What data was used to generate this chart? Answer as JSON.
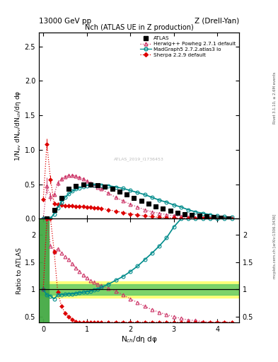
{
  "title_top": "13000 GeV pp",
  "title_top_right": "Z (Drell-Yan)",
  "title_main": "Nch (ATLAS UE in Z production)",
  "ylabel_main": "1/N$_{ev}$ dN$_{ev}$/dN$_{ch}$/dη dφ",
  "ylabel_ratio": "Ratio to ATLAS",
  "xlabel": "N$_{ch}$/dη dφ",
  "right_label_top": "Rivet 3.1.10, ≥ 2.6M events",
  "right_label_bottom": "mcplots.cern.ch [arXiv:1306.3436]",
  "watermark": "ATLAS_2019_I1736453",
  "atlas_x": [
    0.083,
    0.25,
    0.417,
    0.583,
    0.75,
    0.917,
    1.083,
    1.25,
    1.417,
    1.583,
    1.75,
    1.917,
    2.083,
    2.25,
    2.417,
    2.583,
    2.75,
    2.917,
    3.083,
    3.25,
    3.417,
    3.583,
    3.75,
    3.917,
    4.083,
    4.25
  ],
  "atlas_y": [
    0.005,
    0.13,
    0.3,
    0.43,
    0.48,
    0.5,
    0.5,
    0.49,
    0.47,
    0.43,
    0.39,
    0.35,
    0.3,
    0.26,
    0.22,
    0.18,
    0.15,
    0.12,
    0.09,
    0.07,
    0.055,
    0.04,
    0.03,
    0.02,
    0.012,
    0.006
  ],
  "herwig_x": [
    0.0,
    0.083,
    0.167,
    0.25,
    0.333,
    0.417,
    0.5,
    0.583,
    0.667,
    0.75,
    0.833,
    0.917,
    1.0,
    1.083,
    1.167,
    1.25,
    1.333,
    1.5,
    1.667,
    1.833,
    2.0,
    2.167,
    2.333,
    2.5,
    2.667,
    2.833,
    3.0,
    3.167,
    3.333,
    3.5,
    3.667,
    3.833,
    4.0,
    4.167,
    4.333
  ],
  "herwig_y": [
    0.003,
    0.48,
    0.32,
    0.35,
    0.52,
    0.58,
    0.61,
    0.63,
    0.63,
    0.62,
    0.6,
    0.58,
    0.55,
    0.52,
    0.49,
    0.46,
    0.43,
    0.37,
    0.31,
    0.26,
    0.21,
    0.17,
    0.13,
    0.1,
    0.08,
    0.06,
    0.045,
    0.033,
    0.024,
    0.017,
    0.012,
    0.008,
    0.005,
    0.003,
    0.002
  ],
  "herwig_yerr": [
    0.001,
    0.12,
    0.06,
    0.03,
    0.04,
    0.03,
    0.02,
    0.02,
    0.02,
    0.02,
    0.02,
    0.02,
    0.02,
    0.02,
    0.015,
    0.015,
    0.015,
    0.01,
    0.01,
    0.008,
    0.007,
    0.005,
    0.004,
    0.003,
    0.003,
    0.002,
    0.002,
    0.002,
    0.001,
    0.001,
    0.001,
    0.001,
    0.001,
    0.0005,
    0.0005
  ],
  "madgraph_x": [
    0.0,
    0.083,
    0.167,
    0.25,
    0.333,
    0.417,
    0.5,
    0.583,
    0.667,
    0.75,
    0.833,
    0.917,
    1.0,
    1.083,
    1.167,
    1.25,
    1.333,
    1.5,
    1.667,
    1.833,
    2.0,
    2.167,
    2.333,
    2.5,
    2.667,
    2.833,
    3.0,
    3.167,
    3.333,
    3.5,
    3.667,
    3.833,
    4.0,
    4.167,
    4.333
  ],
  "madgraph_y": [
    0.003,
    0.003,
    0.008,
    0.07,
    0.16,
    0.24,
    0.31,
    0.36,
    0.4,
    0.43,
    0.45,
    0.47,
    0.48,
    0.49,
    0.49,
    0.49,
    0.49,
    0.48,
    0.46,
    0.44,
    0.41,
    0.38,
    0.35,
    0.31,
    0.27,
    0.24,
    0.2,
    0.17,
    0.13,
    0.1,
    0.08,
    0.06,
    0.04,
    0.03,
    0.02
  ],
  "sherpa_x": [
    0.0,
    0.083,
    0.167,
    0.25,
    0.333,
    0.417,
    0.5,
    0.583,
    0.667,
    0.75,
    0.833,
    0.917,
    1.0,
    1.083,
    1.167,
    1.25,
    1.333,
    1.5,
    1.667,
    1.833,
    2.0,
    2.167,
    2.333,
    2.5,
    2.667,
    2.833,
    3.0,
    3.167,
    3.333,
    3.5,
    3.667,
    3.833,
    4.0,
    4.167,
    4.333
  ],
  "sherpa_y": [
    0.28,
    1.08,
    0.57,
    0.22,
    0.21,
    0.2,
    0.19,
    0.19,
    0.19,
    0.18,
    0.18,
    0.18,
    0.17,
    0.17,
    0.16,
    0.16,
    0.15,
    0.13,
    0.11,
    0.09,
    0.07,
    0.055,
    0.04,
    0.03,
    0.02,
    0.015,
    0.01,
    0.007,
    0.005,
    0.003,
    0.002,
    0.001,
    0.001,
    0.0005,
    0.0002
  ],
  "sherpa_yerr": [
    0.03,
    0.08,
    0.06,
    0.03,
    0.015,
    0.012,
    0.01,
    0.01,
    0.008,
    0.008,
    0.008,
    0.008,
    0.008,
    0.007,
    0.007,
    0.007,
    0.007,
    0.006,
    0.005,
    0.004,
    0.003,
    0.003,
    0.002,
    0.002,
    0.001,
    0.001,
    0.001,
    0.0007,
    0.0005,
    0.0003,
    0.0002,
    0.0001,
    0.0001,
    0.0001,
    0.0001
  ],
  "herwig_ratio": [
    1.0,
    2.3,
    1.8,
    1.7,
    1.75,
    1.67,
    1.6,
    1.55,
    1.47,
    1.4,
    1.33,
    1.26,
    1.21,
    1.16,
    1.13,
    1.1,
    1.07,
    1.02,
    0.97,
    0.9,
    0.83,
    0.76,
    0.69,
    0.63,
    0.58,
    0.54,
    0.5,
    0.47,
    0.44,
    0.43,
    0.41,
    0.4,
    0.4,
    0.38,
    0.36
  ],
  "madgraph_ratio": [
    1.0,
    0.9,
    0.88,
    0.83,
    0.9,
    0.9,
    0.91,
    0.92,
    0.92,
    0.93,
    0.94,
    0.95,
    0.96,
    0.97,
    0.99,
    1.01,
    1.04,
    1.1,
    1.17,
    1.24,
    1.33,
    1.43,
    1.55,
    1.67,
    1.8,
    1.95,
    2.15,
    2.3,
    2.3,
    2.3,
    2.3,
    2.3,
    2.3,
    2.3,
    2.3
  ],
  "sherpa_ratio": [
    1.0,
    2.3,
    2.3,
    1.7,
    0.95,
    0.7,
    0.57,
    0.5,
    0.45,
    0.41,
    0.4,
    0.38,
    0.36,
    0.35,
    0.34,
    0.33,
    0.33,
    0.31,
    0.29,
    0.27,
    0.24,
    0.22,
    0.19,
    0.17,
    0.14,
    0.13,
    0.11,
    0.1,
    0.09,
    0.08,
    0.07,
    0.05,
    0.05,
    0.05,
    0.04
  ],
  "atlas_color": "#000000",
  "herwig_color": "#cc3366",
  "madgraph_color": "#008b8b",
  "sherpa_color": "#dd0000",
  "ylim_main": [
    0,
    2.7
  ],
  "ylim_ratio": [
    0.4,
    2.3
  ],
  "xlim": [
    -0.1,
    4.5
  ],
  "main_yticks": [
    0.0,
    0.5,
    1.0,
    1.5,
    2.0,
    2.5
  ],
  "ratio_yticks": [
    0.5,
    1.0,
    1.5,
    2.0
  ],
  "ratio_ytick_labels": [
    "0.5",
    "1",
    "1.5",
    "2"
  ]
}
